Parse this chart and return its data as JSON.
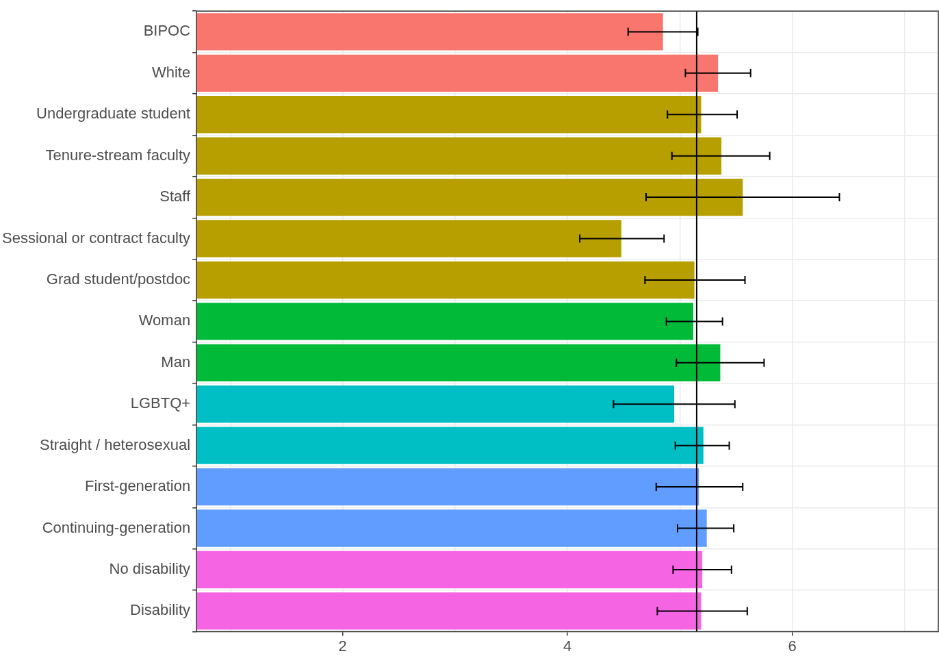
{
  "chart_data": {
    "type": "bar",
    "orientation": "horizontal",
    "categories": [
      "BIPOC",
      "White",
      "Undergraduate student",
      "Tenure-stream faculty",
      "Staff",
      "Sessional or contract faculty",
      "Grad student/postdoc",
      "Woman",
      "Man",
      "LGBTQ+",
      "Straight / heterosexual",
      "First-generation",
      "Continuing-generation",
      "No disability",
      "Disability"
    ],
    "values": [
      4.85,
      5.34,
      5.19,
      5.37,
      5.56,
      4.48,
      5.13,
      5.12,
      5.36,
      4.95,
      5.21,
      5.17,
      5.24,
      5.2,
      5.19
    ],
    "errors": [
      [
        4.54,
        5.16
      ],
      [
        5.05,
        5.63
      ],
      [
        4.89,
        5.51
      ],
      [
        4.93,
        5.8
      ],
      [
        4.7,
        6.42
      ],
      [
        4.11,
        4.86
      ],
      [
        4.69,
        5.58
      ],
      [
        4.88,
        5.38
      ],
      [
        4.97,
        5.75
      ],
      [
        4.41,
        5.49
      ],
      [
        4.96,
        5.44
      ],
      [
        4.79,
        5.56
      ],
      [
        4.98,
        5.48
      ],
      [
        4.94,
        5.46
      ],
      [
        4.8,
        5.6
      ]
    ],
    "colors": [
      "#f8766d",
      "#f8766d",
      "#b79f00",
      "#b79f00",
      "#b79f00",
      "#b79f00",
      "#b79f00",
      "#00ba38",
      "#00ba38",
      "#00bfc4",
      "#00bfc4",
      "#619cff",
      "#619cff",
      "#f564e3",
      "#f564e3"
    ],
    "xlim": [
      0.7,
      7.3
    ],
    "xticks": [
      {
        "value": 1,
        "label": null
      },
      2,
      {
        "value": 3,
        "label": null
      },
      4,
      {
        "value": 5,
        "label": null
      },
      6,
      {
        "value": 7,
        "label": null
      }
    ],
    "ref_lines": [
      {
        "axis": "x",
        "value": 5.15
      }
    ],
    "grid": true,
    "legend": false
  }
}
